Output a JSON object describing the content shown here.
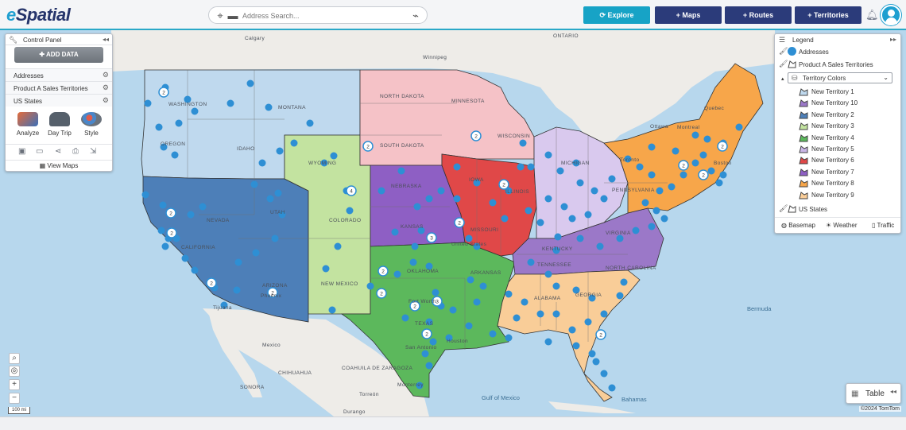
{
  "app": {
    "logo_e": "e",
    "logo_rest": "Spatial"
  },
  "search": {
    "placeholder": "Address Search..."
  },
  "nav": {
    "explore": "Explore",
    "maps": "+ Maps",
    "routes": "+ Routes",
    "territories": "+ Territories"
  },
  "control_panel": {
    "title": "Control Panel",
    "add_data": "ADD DATA",
    "layers": [
      "Addresses",
      "Product A Sales Territories",
      "US States"
    ],
    "tools": [
      "Analyze",
      "Day Trip",
      "Style"
    ],
    "view_maps": "View Maps"
  },
  "legend": {
    "title": "Legend",
    "layers": [
      "Addresses",
      "Product A Sales Territories"
    ],
    "territory_select": "Territory Colors",
    "territories": [
      {
        "name": "New Territory 1",
        "color": "#bfd9ee"
      },
      {
        "name": "New Territory 10",
        "color": "#9b78c8"
      },
      {
        "name": "New Territory 2",
        "color": "#4d7fb8"
      },
      {
        "name": "New Territory 3",
        "color": "#c3e3a0"
      },
      {
        "name": "New Territory 4",
        "color": "#5cb85c"
      },
      {
        "name": "New Territory 5",
        "color": "#c9b6e6"
      },
      {
        "name": "New Territory 6",
        "color": "#e04848"
      },
      {
        "name": "New Territory 7",
        "color": "#8e5fc4"
      },
      {
        "name": "New Territory 8",
        "color": "#f7a64a"
      },
      {
        "name": "New Territory 9",
        "color": "#f9cd98"
      }
    ],
    "us_states": "US States",
    "footer": {
      "basemap": "Basemap",
      "weather": "Weather",
      "traffic": "Traffic"
    }
  },
  "map": {
    "labels": {
      "calgary": "Calgary",
      "ontario": "ONTARIO",
      "winnipeg": "Winnipeg",
      "quebec": "Quebec",
      "ottawa": "Ottawa",
      "montreal": "Montreal",
      "toronto": "Toronto",
      "boston": "Boston",
      "washington": "WASHINGTON",
      "montana": "MONTANA",
      "north_dakota": "NORTH DAKOTA",
      "minnesota": "MINNESOTA",
      "south_dakota": "SOUTH DAKOTA",
      "idaho": "IDAHO",
      "oregon": "OREGON",
      "wyoming": "WYOMING",
      "nebraska": "NEBRASKA",
      "iowa": "IOWA",
      "nevada": "NEVADA",
      "utah": "UTAH",
      "colorado": "COLORADO",
      "kansas": "KANSAS",
      "missouri": "MISSOURI",
      "california": "CALIFORNIA",
      "arizona": "ARIZONA",
      "new_mexico": "NEW MEXICO",
      "oklahoma": "OKLAHOMA",
      "arkansas": "ARKANSAS",
      "texas": "TEXAS",
      "alabama": "ALABAMA",
      "georgia": "GEORGIA",
      "kentucky": "KENTUCKY",
      "tennessee": "TENNESSEE",
      "pennsylvania": "PENNSYLVANIA",
      "virginia": "VIRGINIA",
      "north_carolina": "NORTH CAROLINA",
      "united_states": "United States",
      "mexico": "Mexico",
      "coahuila": "COAHUILA DE ZARAGOZA",
      "chihuahua": "CHIHUAHUA",
      "sonora": "SONORA",
      "gulf": "Gulf of Mexico",
      "bermuda": "Bermuda",
      "bahamas": "Bahamas",
      "tijuana": "Tijuana",
      "torreon": "Torreón",
      "durango": "Durango",
      "monterrey": "Monterrey",
      "houston": "Houston",
      "san_antonio": "San Antonio",
      "wisconsin": "WISCONSIN",
      "illinois": "ILLINOIS",
      "michigan": "MICHIGAN",
      "phoenix": "Phoenix",
      "fort_worth": "Fort Worth"
    },
    "cluster_counts": [
      "2",
      "2",
      "2",
      "4",
      "2",
      "3",
      "2",
      "2",
      "2",
      "2",
      "3",
      "2",
      "2",
      "2",
      "2",
      "2",
      "2",
      "2",
      "2",
      "2"
    ],
    "scale": "100 mi",
    "copyright": "©2024 TomTom"
  },
  "table_button": "Table",
  "colors": {
    "accent": "#17a3c6",
    "nav": "#2b3b7a",
    "dot": "#2e8fd4",
    "water": "#b7d7ed",
    "land": "#f2f0ec"
  }
}
